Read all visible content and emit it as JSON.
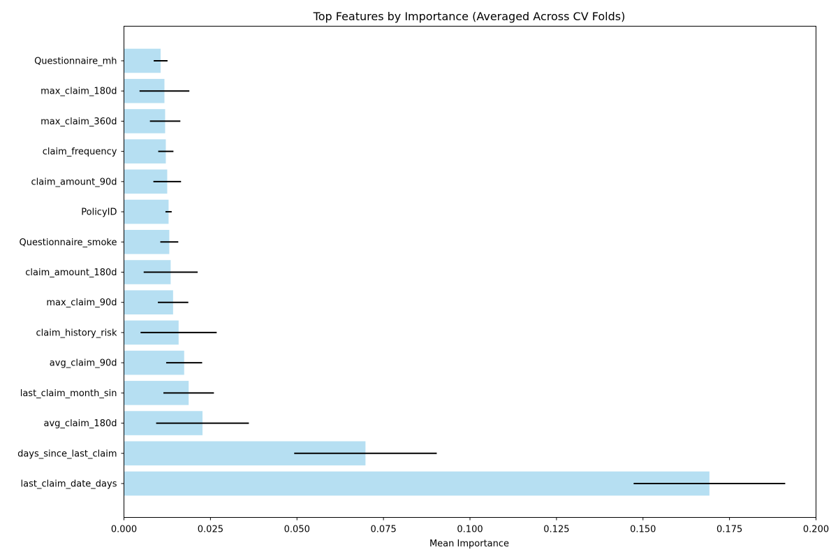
{
  "chart_data": {
    "type": "bar",
    "orientation": "horizontal",
    "title": "Top Features by Importance (Averaged Across CV Folds)",
    "xlabel": "Mean Importance",
    "ylabel": "",
    "xlim": [
      0,
      0.2
    ],
    "xticks": [
      "0.000",
      "0.025",
      "0.050",
      "0.075",
      "0.100",
      "0.125",
      "0.150",
      "0.175",
      "0.200"
    ],
    "grid": false,
    "bar_color": "#b6dff2",
    "error_color": "#000000",
    "categories": [
      "Questionnaire_mh",
      "max_claim_180d",
      "max_claim_360d",
      "claim_frequency",
      "claim_amount_90d",
      "PolicyID",
      "Questionnaire_smoke",
      "claim_amount_180d",
      "max_claim_90d",
      "claim_history_risk",
      "avg_claim_90d",
      "last_claim_month_sin",
      "avg_claim_180d",
      "days_since_last_claim",
      "last_claim_date_days"
    ],
    "values": [
      0.0106,
      0.0117,
      0.0119,
      0.0121,
      0.0125,
      0.0129,
      0.0131,
      0.0135,
      0.0142,
      0.0158,
      0.0174,
      0.0187,
      0.0227,
      0.0698,
      0.1692
    ],
    "errors": [
      0.002,
      0.0072,
      0.0044,
      0.0022,
      0.004,
      0.0009,
      0.0026,
      0.0078,
      0.0044,
      0.011,
      0.0052,
      0.0073,
      0.0134,
      0.0206,
      0.0219
    ]
  }
}
